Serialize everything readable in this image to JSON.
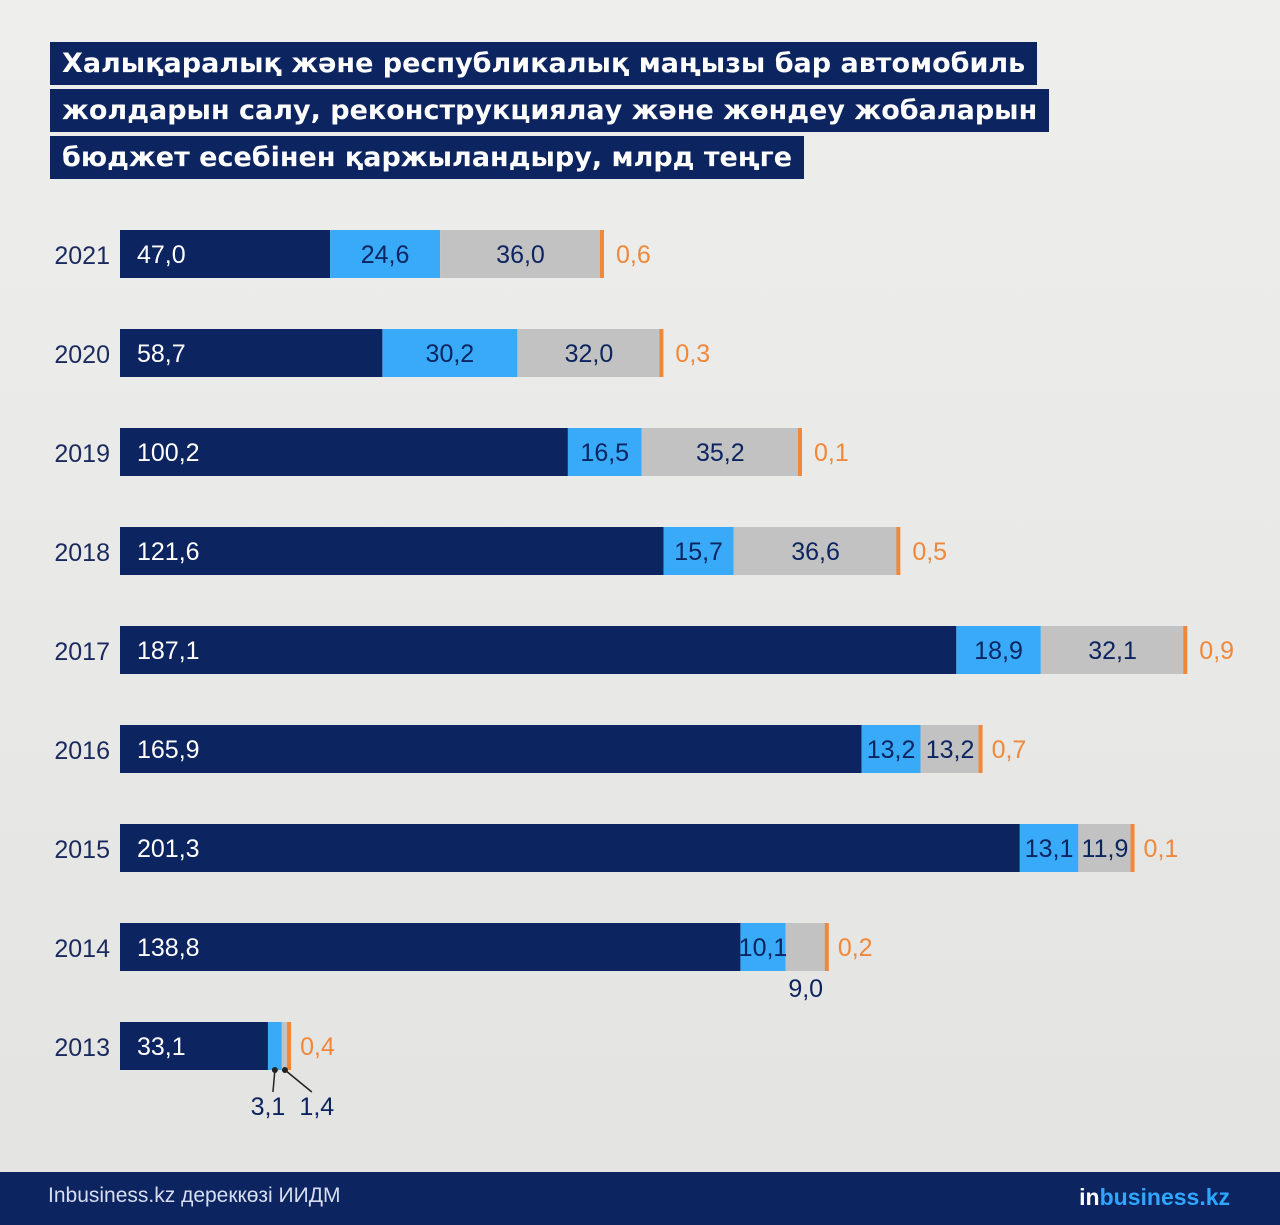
{
  "title": {
    "lines": [
      "Халықаралық және республикалық маңызы бар автомобиль",
      "жолдарын салу, реконструкциялау және жөндеу жобаларын",
      "бюджет есебінен қаржыландыру, млрд теңге"
    ]
  },
  "chart_data": {
    "type": "bar",
    "orientation": "horizontal",
    "stacked": true,
    "title": "Халықаралық және республикалық маңызы бар автомобиль жолдарын салу, реконструкциялау және жөндеу жобаларын бюджет есебінен қаржыландыру, млрд теңге",
    "categories": [
      "2021",
      "2020",
      "2019",
      "2018",
      "2017",
      "2016",
      "2015",
      "2014",
      "2013"
    ],
    "series": [
      {
        "color": "#0c2460",
        "values": [
          47.0,
          58.7,
          100.2,
          121.6,
          187.1,
          165.9,
          201.3,
          138.8,
          33.1
        ],
        "labels": [
          "47,0",
          "58,7",
          "100,2",
          "121,6",
          "187,1",
          "165,9",
          "201,3",
          "138,8",
          "33,1"
        ]
      },
      {
        "color": "#38aaf8",
        "values": [
          24.6,
          30.2,
          16.5,
          15.7,
          18.9,
          13.2,
          13.1,
          10.1,
          3.1
        ],
        "labels": [
          "24,6",
          "30,2",
          "16,5",
          "15,7",
          "18,9",
          "13,2",
          "13,1",
          "10,1",
          "3,1"
        ]
      },
      {
        "color": "#c2c2c2",
        "values": [
          36.0,
          32.0,
          35.2,
          36.6,
          32.1,
          13.2,
          11.9,
          9.0,
          1.4
        ],
        "labels": [
          "36,0",
          "32,0",
          "35,2",
          "36,6",
          "32,1",
          "13,2",
          "11,9",
          "9,0",
          "1,4"
        ]
      },
      {
        "color": "#f0883a",
        "values": [
          0.6,
          0.3,
          0.1,
          0.5,
          0.9,
          0.7,
          0.1,
          0.2,
          0.4
        ],
        "labels": [
          "0,6",
          "0,3",
          "0,1",
          "0,5",
          "0,9",
          "0,7",
          "0,1",
          "0,2",
          "0,4"
        ]
      }
    ],
    "legend": "none",
    "grid": false
  },
  "footer": {
    "source": "Inbusiness.kz дереккөзі ИИДМ",
    "brand_prefix": "in",
    "brand_suffix": "business.kz"
  }
}
